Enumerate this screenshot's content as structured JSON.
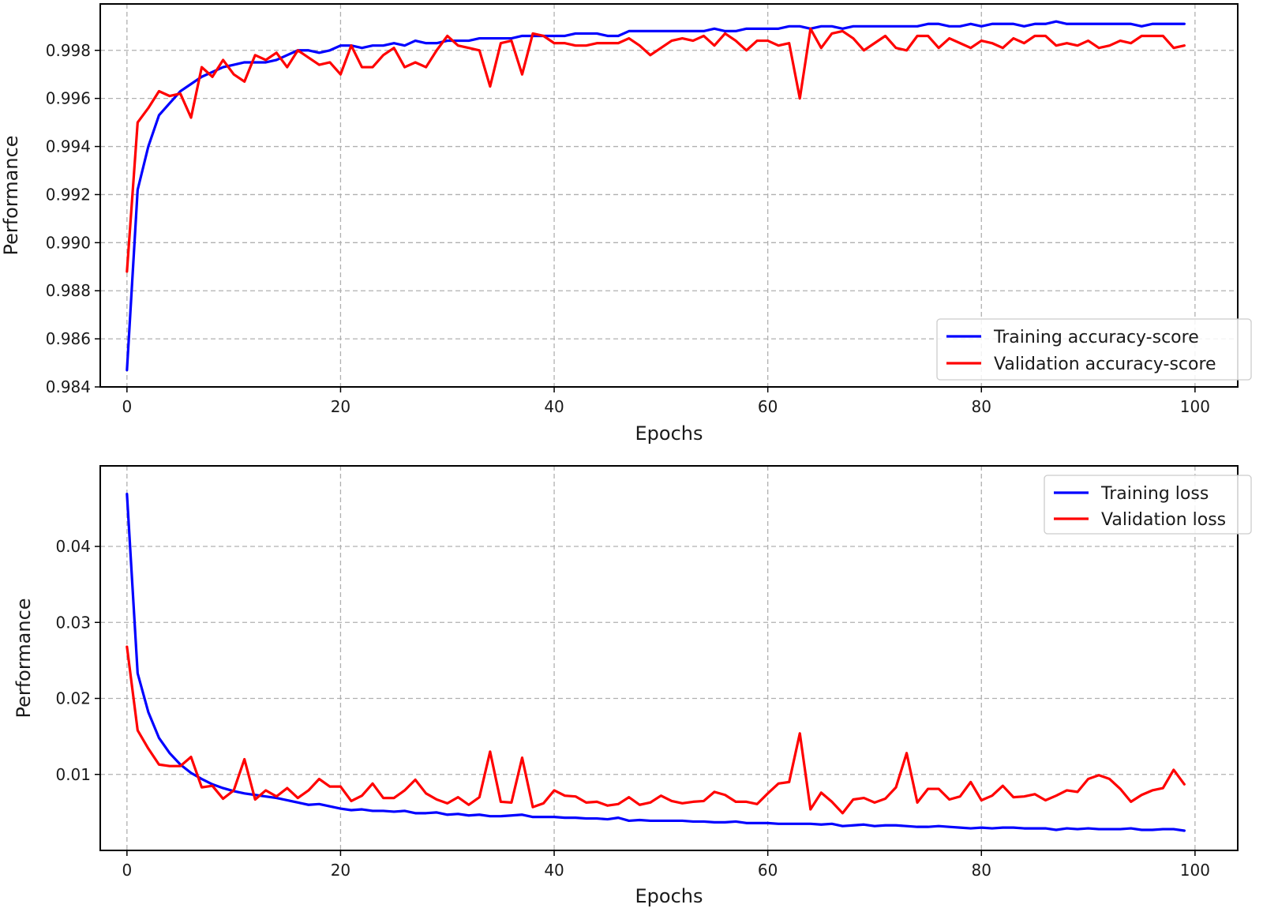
{
  "chart_data": [
    {
      "type": "line",
      "title": "",
      "xlabel": "Epochs",
      "ylabel": "Performance",
      "xlim": [
        -2.5,
        104
      ],
      "ylim": [
        0.984,
        0.99993
      ],
      "grid": true,
      "legend_position": "bottom-right",
      "xticks": [
        0,
        20,
        40,
        60,
        80,
        100
      ],
      "xtick_labels": [
        "0",
        "20",
        "40",
        "60",
        "80",
        "100"
      ],
      "yticks": [
        0.984,
        0.986,
        0.988,
        0.99,
        0.992,
        0.994,
        0.996,
        0.998
      ],
      "ytick_labels": [
        "0.984",
        "0.986",
        "0.988",
        "0.990",
        "0.992",
        "0.994",
        "0.996",
        "0.998"
      ],
      "series": [
        {
          "name": "Training accuracy-score",
          "color": "#0000ff",
          "values": [
            0.9847,
            0.9922,
            0.994,
            0.9953,
            0.9958,
            0.9963,
            0.9966,
            0.9969,
            0.9971,
            0.9973,
            0.9974,
            0.9975,
            0.9975,
            0.9975,
            0.9976,
            0.9978,
            0.998,
            0.998,
            0.9979,
            0.998,
            0.9982,
            0.9982,
            0.9981,
            0.9982,
            0.9982,
            0.9983,
            0.9982,
            0.9984,
            0.9983,
            0.9983,
            0.9984,
            0.9984,
            0.9984,
            0.9985,
            0.9985,
            0.9985,
            0.9985,
            0.9986,
            0.9986,
            0.9986,
            0.9986,
            0.9986,
            0.9987,
            0.9987,
            0.9987,
            0.9986,
            0.9986,
            0.9988,
            0.9988,
            0.9988,
            0.9988,
            0.9988,
            0.9988,
            0.9988,
            0.9988,
            0.9989,
            0.9988,
            0.9988,
            0.9989,
            0.9989,
            0.9989,
            0.9989,
            0.999,
            0.999,
            0.9989,
            0.999,
            0.999,
            0.9989,
            0.999,
            0.999,
            0.999,
            0.999,
            0.999,
            0.999,
            0.999,
            0.9991,
            0.9991,
            0.999,
            0.999,
            0.9991,
            0.999,
            0.9991,
            0.9991,
            0.9991,
            0.999,
            0.9991,
            0.9991,
            0.9992,
            0.9991,
            0.9991,
            0.9991,
            0.9991,
            0.9991,
            0.9991,
            0.9991,
            0.999,
            0.9991,
            0.9991,
            0.9991,
            0.9991
          ]
        },
        {
          "name": "Validation accuracy-score",
          "color": "#ff0000",
          "values": [
            0.9888,
            0.995,
            0.9956,
            0.9963,
            0.9961,
            0.9962,
            0.9952,
            0.9973,
            0.9969,
            0.9976,
            0.997,
            0.9967,
            0.9978,
            0.9976,
            0.9979,
            0.9973,
            0.998,
            0.9977,
            0.9974,
            0.9975,
            0.997,
            0.9982,
            0.9973,
            0.9973,
            0.9978,
            0.9981,
            0.9973,
            0.9975,
            0.9973,
            0.998,
            0.9986,
            0.9982,
            0.9981,
            0.998,
            0.9965,
            0.9983,
            0.9984,
            0.997,
            0.9987,
            0.9986,
            0.9983,
            0.9983,
            0.9982,
            0.9982,
            0.9983,
            0.9983,
            0.9983,
            0.9985,
            0.9982,
            0.9978,
            0.9981,
            0.9984,
            0.9985,
            0.9984,
            0.9986,
            0.9982,
            0.9987,
            0.9984,
            0.998,
            0.9984,
            0.9984,
            0.9982,
            0.9983,
            0.996,
            0.9989,
            0.9981,
            0.9987,
            0.9988,
            0.9985,
            0.998,
            0.9983,
            0.9986,
            0.9981,
            0.998,
            0.9986,
            0.9986,
            0.9981,
            0.9985,
            0.9983,
            0.9981,
            0.9984,
            0.9983,
            0.9981,
            0.9985,
            0.9983,
            0.9986,
            0.9986,
            0.9982,
            0.9983,
            0.9982,
            0.9984,
            0.9981,
            0.9982,
            0.9984,
            0.9983,
            0.9986,
            0.9986,
            0.9986,
            0.9981,
            0.9982
          ]
        }
      ]
    },
    {
      "type": "line",
      "title": "",
      "xlabel": "Epochs",
      "ylabel": "Performance",
      "xlim": [
        -2.5,
        104
      ],
      "ylim": [
        0.0,
        0.0506
      ],
      "grid": true,
      "legend_position": "top-right",
      "xticks": [
        0,
        20,
        40,
        60,
        80,
        100
      ],
      "xtick_labels": [
        "0",
        "20",
        "40",
        "60",
        "80",
        "100"
      ],
      "yticks": [
        0.01,
        0.02,
        0.03,
        0.04
      ],
      "ytick_labels": [
        "0.01",
        "0.02",
        "0.03",
        "0.04"
      ],
      "series": [
        {
          "name": "Training loss",
          "color": "#0000ff",
          "values": [
            0.0469,
            0.0233,
            0.0182,
            0.0148,
            0.0128,
            0.0113,
            0.0102,
            0.0094,
            0.0087,
            0.0082,
            0.0078,
            0.0075,
            0.0073,
            0.0071,
            0.0069,
            0.0066,
            0.0063,
            0.006,
            0.0061,
            0.0058,
            0.0055,
            0.0053,
            0.0054,
            0.0052,
            0.0052,
            0.0051,
            0.0052,
            0.0049,
            0.0049,
            0.005,
            0.0047,
            0.0048,
            0.0046,
            0.0047,
            0.0045,
            0.0045,
            0.0046,
            0.0047,
            0.0044,
            0.0044,
            0.0044,
            0.0043,
            0.0043,
            0.0042,
            0.0042,
            0.0041,
            0.0043,
            0.0039,
            0.004,
            0.0039,
            0.0039,
            0.0039,
            0.0039,
            0.0038,
            0.0038,
            0.0037,
            0.0037,
            0.0038,
            0.0036,
            0.0036,
            0.0036,
            0.0035,
            0.0035,
            0.0035,
            0.0035,
            0.0034,
            0.0035,
            0.0032,
            0.0033,
            0.0034,
            0.0032,
            0.0033,
            0.0033,
            0.0032,
            0.0031,
            0.0031,
            0.0032,
            0.0031,
            0.003,
            0.0029,
            0.003,
            0.0029,
            0.003,
            0.003,
            0.0029,
            0.0029,
            0.0029,
            0.0027,
            0.0029,
            0.0028,
            0.0029,
            0.0028,
            0.0028,
            0.0028,
            0.0029,
            0.0027,
            0.0027,
            0.0028,
            0.0028,
            0.0026
          ]
        },
        {
          "name": "Validation loss",
          "color": "#ff0000",
          "values": [
            0.0268,
            0.0158,
            0.0134,
            0.0113,
            0.0111,
            0.0111,
            0.0123,
            0.0083,
            0.0085,
            0.0068,
            0.0079,
            0.012,
            0.0067,
            0.0079,
            0.0071,
            0.0082,
            0.0069,
            0.0079,
            0.0094,
            0.0084,
            0.0084,
            0.0065,
            0.0072,
            0.0088,
            0.0069,
            0.0069,
            0.0079,
            0.0093,
            0.0075,
            0.0067,
            0.0062,
            0.007,
            0.006,
            0.007,
            0.013,
            0.0064,
            0.0063,
            0.0122,
            0.0057,
            0.0062,
            0.0079,
            0.0072,
            0.0071,
            0.0063,
            0.0064,
            0.0059,
            0.0061,
            0.007,
            0.006,
            0.0063,
            0.0072,
            0.0065,
            0.0062,
            0.0064,
            0.0065,
            0.0077,
            0.0073,
            0.0064,
            0.0064,
            0.0061,
            0.0075,
            0.0088,
            0.009,
            0.0154,
            0.0054,
            0.0076,
            0.0064,
            0.0049,
            0.0067,
            0.0069,
            0.0063,
            0.0068,
            0.0083,
            0.0128,
            0.0063,
            0.0081,
            0.0081,
            0.0067,
            0.0071,
            0.009,
            0.0066,
            0.0072,
            0.0085,
            0.007,
            0.0071,
            0.0074,
            0.0066,
            0.0072,
            0.0079,
            0.0077,
            0.0094,
            0.0099,
            0.0094,
            0.0081,
            0.0064,
            0.0073,
            0.0079,
            0.0082,
            0.0106,
            0.0087
          ]
        }
      ]
    }
  ]
}
